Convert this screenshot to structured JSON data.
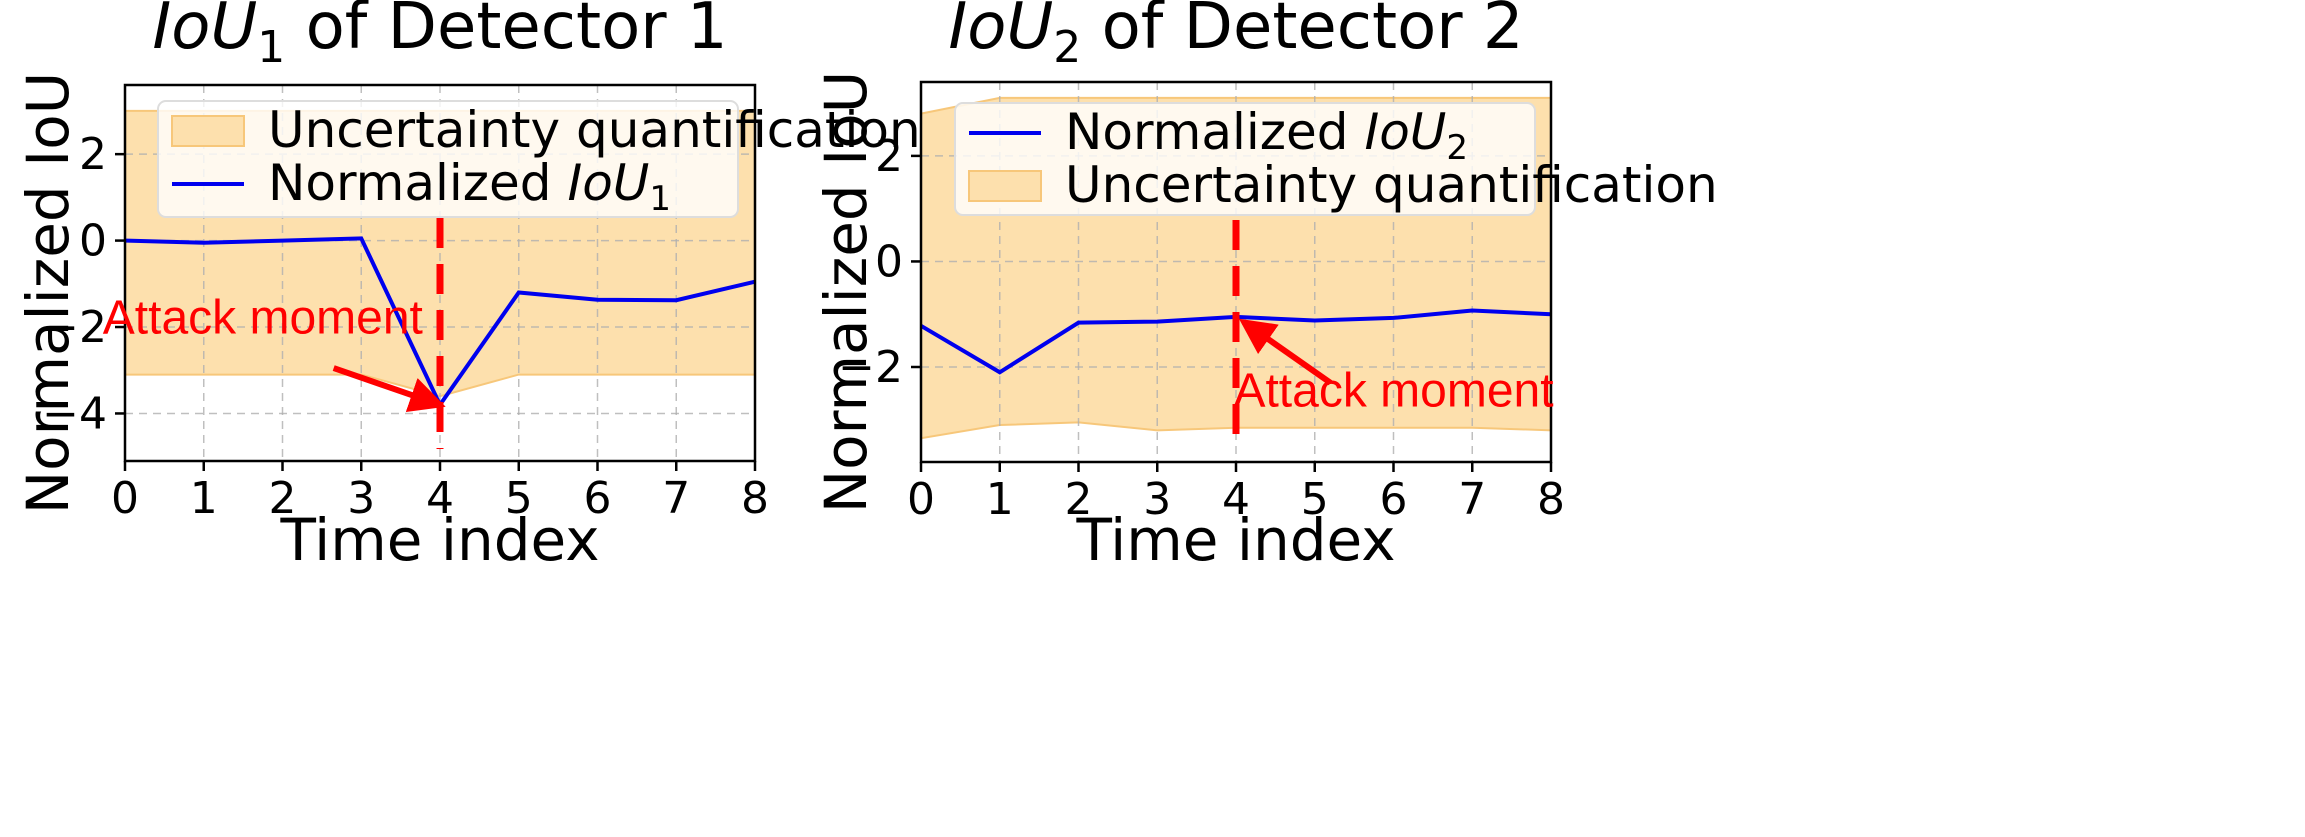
{
  "chart_data": [
    {
      "type": "line",
      "title": {
        "main": "IoU",
        "sub": "1",
        "rest": " of Detector 1"
      },
      "xlabel": "Time index",
      "ylabel": "Normalized IoU",
      "xlim": [
        0,
        8
      ],
      "ylim": [
        -5.1,
        3.6
      ],
      "xticks": [
        0,
        1,
        2,
        3,
        4,
        5,
        6,
        7,
        8
      ],
      "yticks": [
        2,
        0,
        -2,
        -4
      ],
      "ytick_labels": [
        "2",
        "0",
        "−2",
        "−4"
      ],
      "grid": true,
      "legend_position": "top-center",
      "series": [
        {
          "name": {
            "main": "Normalized ",
            "italic": "IoU",
            "sub": "1"
          },
          "type": "line",
          "color": "#0000ee",
          "x": [
            0,
            1,
            2,
            3,
            4,
            5,
            6,
            7,
            8
          ],
          "y": [
            0.0,
            -0.05,
            0.0,
            0.05,
            -3.8,
            -1.2,
            -1.37,
            -1.38,
            -0.95
          ]
        }
      ],
      "band": {
        "name": "Uncertainty quantification",
        "color": "#fde0ad",
        "x": [
          0,
          1,
          2,
          3,
          4,
          5,
          6,
          7,
          8
        ],
        "upper": [
          3.0,
          3.0,
          3.0,
          3.0,
          3.0,
          3.0,
          3.0,
          3.0,
          3.0
        ],
        "lower": [
          -3.1,
          -3.1,
          -3.1,
          -3.1,
          -3.6,
          -3.1,
          -3.1,
          -3.1,
          -3.1
        ]
      },
      "legend_order": [
        "band",
        "series"
      ],
      "attack": {
        "x": 4,
        "label": "Attack moment",
        "color": "#ff0000",
        "text_at": [
          1.75,
          -2.15
        ],
        "arrow_from": [
          2.65,
          -2.95
        ],
        "arrow_to": [
          4.0,
          -3.8
        ]
      }
    },
    {
      "type": "line",
      "title": {
        "main": "IoU",
        "sub": "2",
        "rest": " of Detector 2"
      },
      "xlabel": "Time index",
      "ylabel": "Normalized IoU",
      "xlim": [
        0,
        8
      ],
      "ylim": [
        -3.8,
        3.4
      ],
      "xticks": [
        0,
        1,
        2,
        3,
        4,
        5,
        6,
        7,
        8
      ],
      "yticks": [
        2,
        0,
        -2
      ],
      "ytick_labels": [
        "2",
        "0",
        "−2"
      ],
      "grid": true,
      "legend_position": "top-center",
      "series": [
        {
          "name": {
            "main": "Normalized ",
            "italic": "IoU",
            "sub": "2"
          },
          "type": "line",
          "color": "#0000ee",
          "x": [
            0,
            1,
            2,
            3,
            4,
            5,
            6,
            7,
            8
          ],
          "y": [
            -1.22,
            -2.1,
            -1.16,
            -1.14,
            -1.05,
            -1.12,
            -1.07,
            -0.93,
            -1.0
          ]
        }
      ],
      "band": {
        "name": "Uncertainty quantification",
        "color": "#fde0ad",
        "x": [
          0,
          1,
          2,
          3,
          4,
          5,
          6,
          7,
          8
        ],
        "upper": [
          2.8,
          3.1,
          3.1,
          3.1,
          3.1,
          3.1,
          3.1,
          3.1,
          3.1
        ],
        "lower": [
          -3.35,
          -3.1,
          -3.05,
          -3.2,
          -3.15,
          -3.15,
          -3.15,
          -3.15,
          -3.2
        ]
      },
      "legend_order": [
        "series",
        "band"
      ],
      "attack": {
        "x": 4,
        "label": "Attack moment",
        "color": "#ff0000",
        "text_at": [
          6.0,
          -2.75
        ],
        "arrow_from": [
          5.2,
          -2.3
        ],
        "arrow_to": [
          4.1,
          -1.15
        ]
      }
    }
  ]
}
